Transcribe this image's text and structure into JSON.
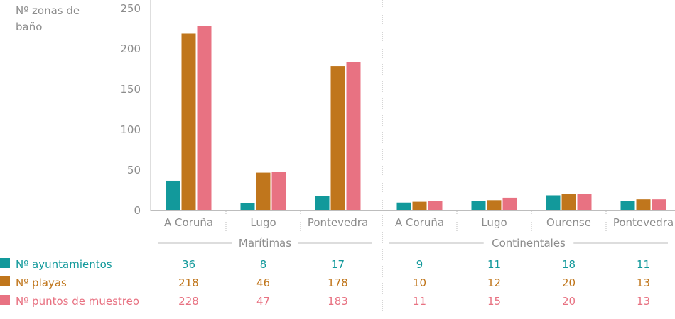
{
  "chart_data": {
    "type": "bar",
    "ylabel": "Nº zonas de baño",
    "ylim": [
      0,
      250
    ],
    "yticks": [
      0,
      50,
      100,
      150,
      200,
      250
    ],
    "grid": false,
    "groups": [
      {
        "name": "Marítimas",
        "categories": [
          "A Coruña",
          "Lugo",
          "Pontevedra"
        ]
      },
      {
        "name": "Continentales",
        "categories": [
          "A Coruña",
          "Lugo",
          "Ourense",
          "Pontevedra"
        ]
      }
    ],
    "categories": [
      "A Coruña",
      "Lugo",
      "Pontevedra",
      "A Coruña",
      "Lugo",
      "Ourense",
      "Pontevedra"
    ],
    "series": [
      {
        "name": "Nº ayuntamientos",
        "color": "#12999b",
        "values": [
          36,
          8,
          17,
          9,
          11,
          18,
          11
        ]
      },
      {
        "name": "Nº playas",
        "color": "#c0761c",
        "values": [
          218,
          46,
          178,
          10,
          12,
          20,
          13
        ]
      },
      {
        "name": "Nº puntos de muestreo",
        "color": "#e87282",
        "values": [
          228,
          47,
          183,
          11,
          15,
          20,
          13
        ]
      }
    ],
    "legend": "bottom-left (as data table row labels)"
  }
}
